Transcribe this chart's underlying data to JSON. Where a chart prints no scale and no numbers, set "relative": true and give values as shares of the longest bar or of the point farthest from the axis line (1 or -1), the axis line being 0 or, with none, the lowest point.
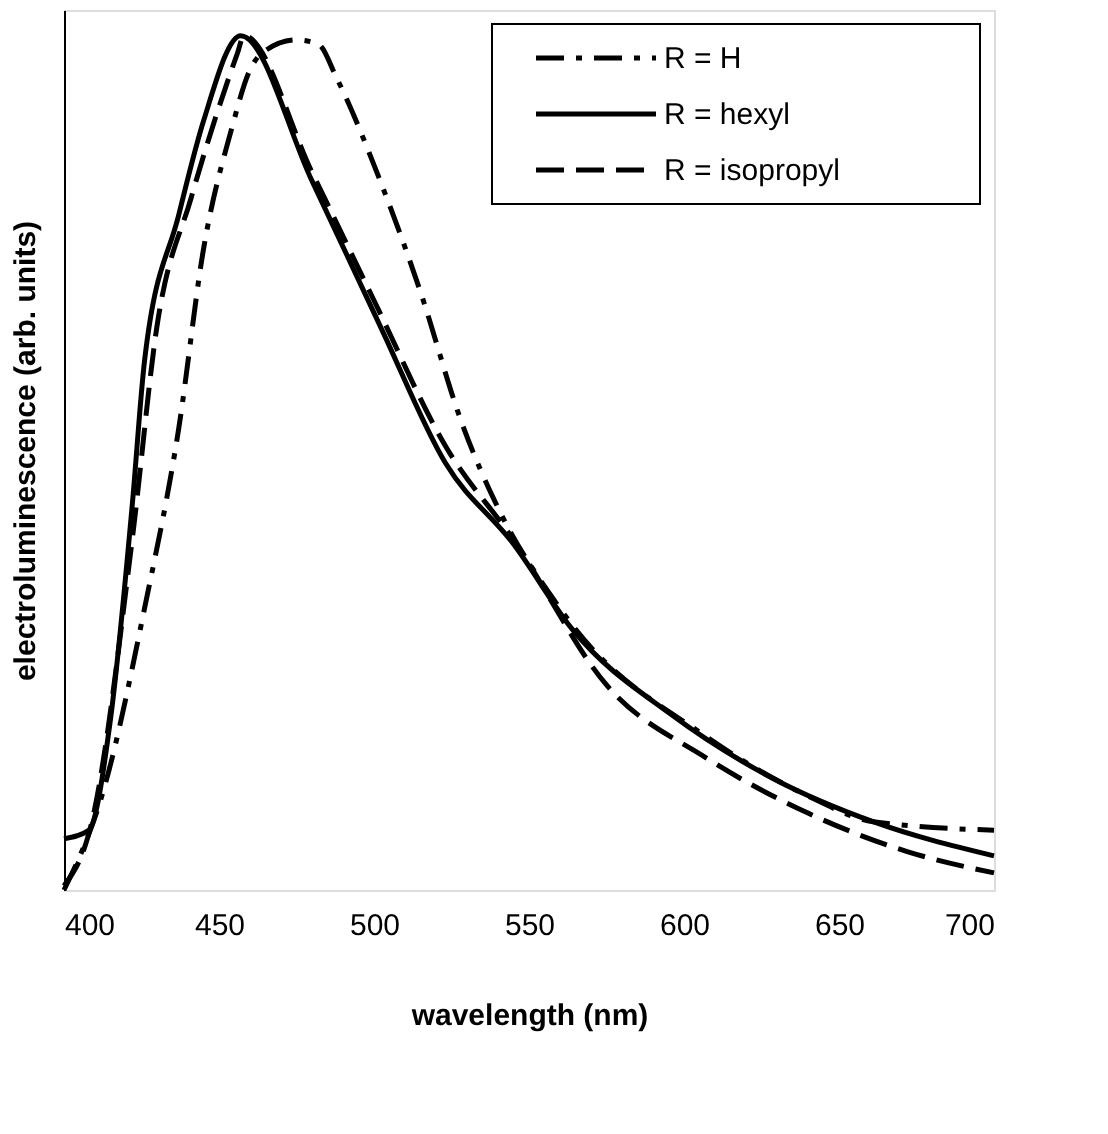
{
  "chart_data": {
    "type": "line",
    "xlabel": "wavelength (nm)",
    "ylabel": "electroluminescence (arb. units)",
    "relative": true,
    "xlim": [
      400,
      700
    ],
    "xticks": [
      400,
      450,
      500,
      550,
      600,
      650,
      700
    ],
    "grid": false,
    "legend": "top right",
    "marker": "none",
    "series": [
      {
        "name": "R = H",
        "color": "#000000",
        "line_style": "dashdot",
        "x": [
          400,
          413,
          426,
          437,
          445,
          454,
          460,
          464,
          475,
          482,
          488,
          502,
          515,
          528,
          541,
          557,
          564,
          607,
          640,
          661,
          700
        ],
        "values": [
          0.0,
          0.12,
          0.33,
          0.54,
          0.75,
          0.89,
          0.96,
          0.98,
          0.995,
          0.99,
          0.95,
          0.83,
          0.7,
          0.55,
          0.44,
          0.345,
          0.31,
          0.18,
          0.11,
          0.08,
          0.07
        ]
      },
      {
        "name": "R = hexyl",
        "color": "#000000",
        "line_style": "solid",
        "x": [
          400,
          408,
          415,
          422,
          426,
          437,
          445,
          457,
          480,
          502,
          523,
          545,
          564,
          596,
          629,
          661,
          700
        ],
        "values": [
          0.06,
          0.07,
          0.2,
          0.45,
          0.62,
          0.79,
          0.9,
          1.0,
          0.83,
          0.66,
          0.5,
          0.405,
          0.305,
          0.205,
          0.13,
          0.08,
          0.04
        ]
      },
      {
        "name": "R = isopropyl",
        "color": "#000000",
        "line_style": "dashed",
        "x": [
          400,
          409,
          422,
          430,
          441,
          456,
          458,
          480,
          500,
          523,
          545,
          575,
          607,
          640,
          672,
          700
        ],
        "values": [
          0.005,
          0.08,
          0.41,
          0.66,
          0.81,
          0.98,
          1.0,
          0.84,
          0.69,
          0.52,
          0.41,
          0.24,
          0.155,
          0.09,
          0.045,
          0.02
        ]
      }
    ]
  }
}
